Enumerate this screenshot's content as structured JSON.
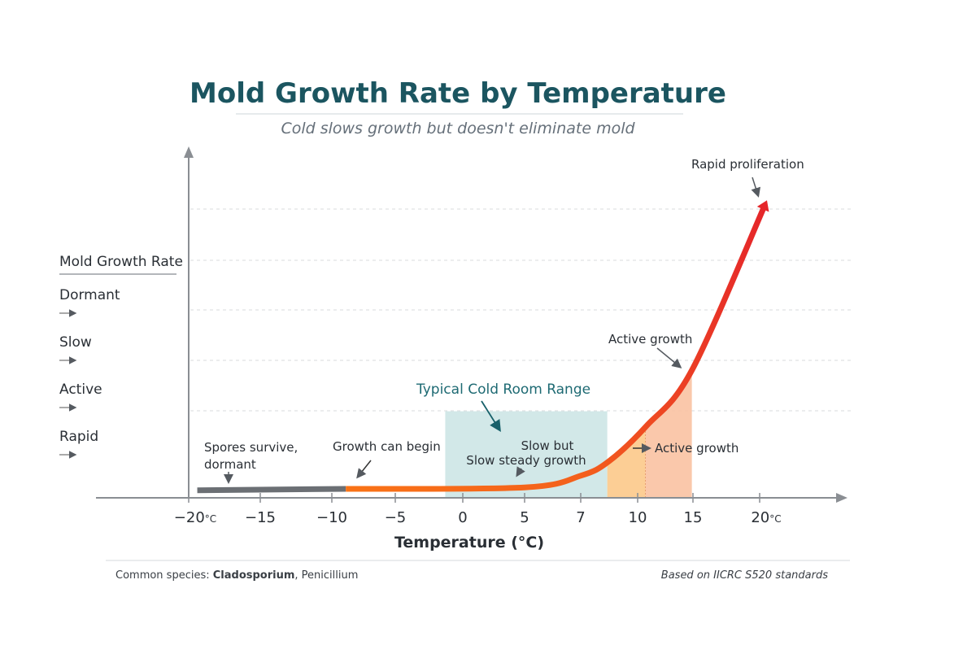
{
  "chart_data": {
    "type": "line",
    "title": "Mold Growth Rate by Temperature",
    "subtitle": "Cold slows growth but doesn't eliminate mold",
    "xlabel": "Temperature (°C)",
    "ylabel": "Mold Growth Rate",
    "x_ticks": [
      "-20",
      "-15",
      "-10",
      "-5",
      "0",
      "5",
      "7",
      "10",
      "15",
      "20"
    ],
    "x_tick_values": [
      -20,
      -15,
      -10,
      -5,
      0,
      5,
      7,
      10,
      15,
      20
    ],
    "x_tick_unit": "°C",
    "y_categories": [
      "Dormant",
      "Slow",
      "Active",
      "Rapid"
    ],
    "ylim": [
      0,
      100
    ],
    "grid": true,
    "series": [
      {
        "segment": "dormant",
        "color": "#6b6f74",
        "x": [
          -19.4,
          -8.9
        ],
        "y": [
          2,
          2.5
        ]
      },
      {
        "segment": "growth",
        "color_start": "#f97316",
        "color_end": "#e5262a",
        "x": [
          -8.9,
          5,
          7,
          8.5,
          10.8,
          14.9,
          20.4
        ],
        "y": [
          2.5,
          3,
          7,
          12,
          24,
          43,
          99.5
        ]
      }
    ],
    "regions": [
      {
        "label": "Typical Cold Room Range",
        "x": [
          -1.3,
          8.4
        ],
        "color": "#cde6e6",
        "top": 29
      },
      {
        "x": [
          8.4,
          10.7
        ],
        "color": "#fcc98a",
        "under_curve": true
      },
      {
        "x": [
          10.7,
          14.9
        ],
        "color": "#f9c2a2",
        "under_curve": true
      }
    ],
    "annotations": {
      "spores": [
        "Spores survive,",
        "dormant"
      ],
      "growth_begin": "Growth can begin",
      "slow_but": "Slow but",
      "slow_steady": "Slow steady growth",
      "active_right": "Active growth",
      "active_top": "Active growth",
      "rapid": "Rapid proliferation"
    }
  },
  "footer": {
    "species_prefix": "Common species: ",
    "species_bold": "Cladosporium",
    "species_rest": ", Penicillium",
    "source": "Based on IICRC S520 standards"
  }
}
